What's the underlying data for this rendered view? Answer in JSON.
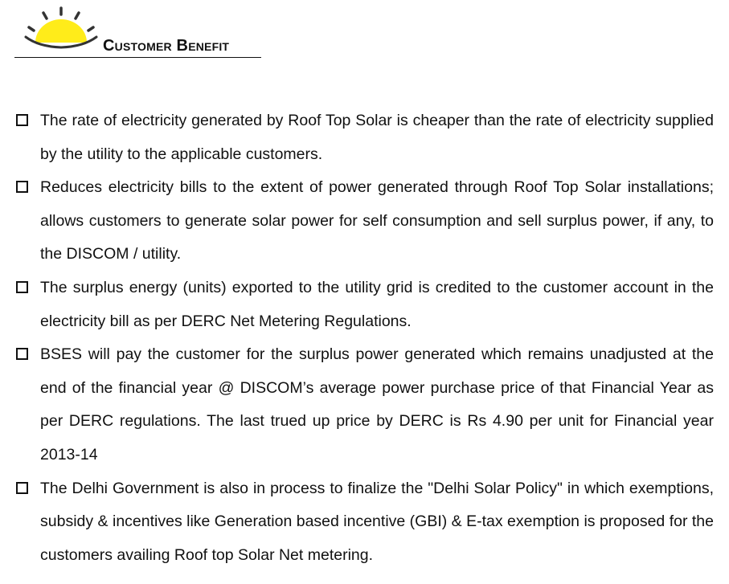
{
  "header": {
    "title": "Customer Benefit",
    "logo_icon": "sun-logo-icon",
    "sun_color": "#FFEC1A"
  },
  "items": [
    {
      "text": "The rate of electricity generated by Roof Top Solar is cheaper than the rate of electricity supplied by the utility to the applicable customers."
    },
    {
      "text": "Reduces electricity bills to the extent of power generated through Roof Top Solar installations; allows customers to generate solar power for self consumption and sell surplus power, if any, to the DISCOM / utility."
    },
    {
      "text": "The surplus energy (units) exported to the utility grid is credited to the customer account in the electricity bill as per DERC Net Metering Regulations."
    },
    {
      "text": "BSES will pay the customer for the surplus power generated which remains unadjusted at the end of the financial year @ DISCOM’s average power purchase price of that Financial Year as per DERC regulations. The last trued up price by DERC is Rs 4.90 per unit for Financial year 2013-14"
    },
    {
      "text": "The Delhi Government is also in process to finalize the \"Delhi Solar Policy\" in which exemptions, subsidy & incentives like Generation based incentive (GBI) & E-tax exemption is proposed for the customers availing Roof top Solar Net metering."
    }
  ]
}
